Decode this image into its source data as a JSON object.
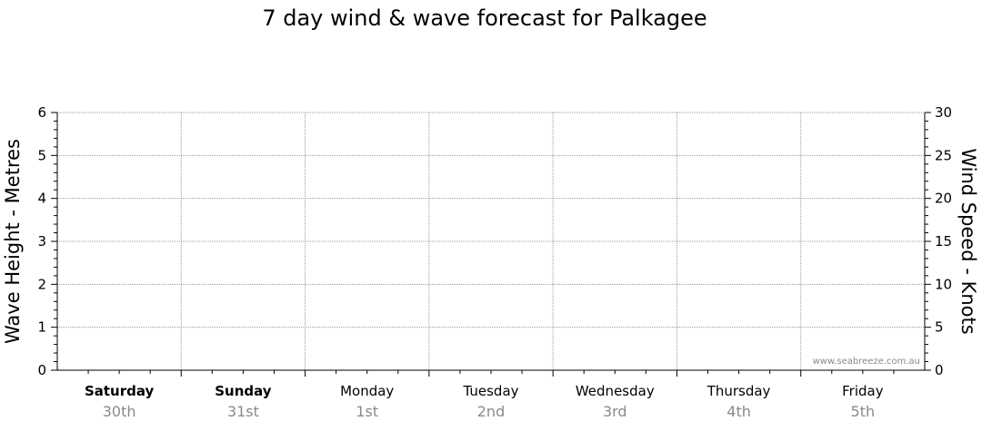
{
  "chart_data": {
    "type": "line",
    "title": "7 day wind & wave forecast for Palkagee",
    "ylabel_left": "Wave Height - Metres",
    "ylabel_right": "Wind Speed - Knots",
    "y_left": {
      "range": [
        0,
        6
      ],
      "ticks": [
        "0",
        "1",
        "2",
        "3",
        "4",
        "5",
        "6"
      ]
    },
    "y_right": {
      "range": [
        0,
        30
      ],
      "ticks": [
        "0",
        "5",
        "10",
        "15",
        "20",
        "25",
        "30"
      ]
    },
    "days": [
      {
        "day": "Saturday",
        "date": "30th",
        "weekend": true
      },
      {
        "day": "Sunday",
        "date": "31st",
        "weekend": true
      },
      {
        "day": "Monday",
        "date": "1st",
        "weekend": false
      },
      {
        "day": "Tuesday",
        "date": "2nd",
        "weekend": false
      },
      {
        "day": "Wednesday",
        "date": "3rd",
        "weekend": false
      },
      {
        "day": "Thursday",
        "date": "4th",
        "weekend": false
      },
      {
        "day": "Friday",
        "date": "5th",
        "weekend": false
      }
    ],
    "series": [],
    "grid": true,
    "watermark": "www.seabreeze.com.au",
    "colors": {
      "grid": "#999999",
      "axis": "#000000",
      "date": "#8a8a8a"
    }
  }
}
